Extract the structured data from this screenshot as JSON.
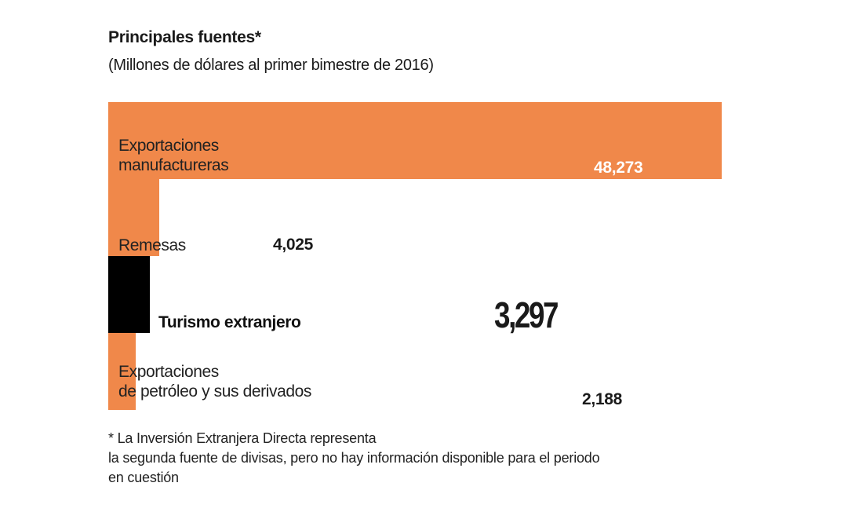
{
  "chart_data": {
    "type": "bar",
    "orientation": "horizontal",
    "title": "Principales fuentes*",
    "subtitle": "(Millones de dólares al primer bimestre de 2016)",
    "categories": [
      "Exportaciones manufactureras",
      "Remesas",
      "Turismo extranjero",
      "Exportaciones de petróleo y sus derivados"
    ],
    "category_lines": [
      [
        "Exportaciones",
        "manufactureras"
      ],
      [
        "Remesas"
      ],
      [
        "Turismo extranjero"
      ],
      [
        "Exportaciones",
        "de petróleo y sus derivados"
      ]
    ],
    "values": [
      48273,
      4025,
      3297,
      2188
    ],
    "value_labels": [
      "48,273",
      "4,025",
      "3,297",
      "2,188"
    ],
    "colors": [
      "#F0884A",
      "#F0884A",
      "#000000",
      "#F0884A"
    ],
    "xlabel": "",
    "ylabel": "",
    "grid": false,
    "footnote": [
      "* La Inversión Extranjera Directa representa",
      "la segunda fuente de divisas, pero no hay información disponible para el periodo",
      "en cuestión"
    ]
  }
}
